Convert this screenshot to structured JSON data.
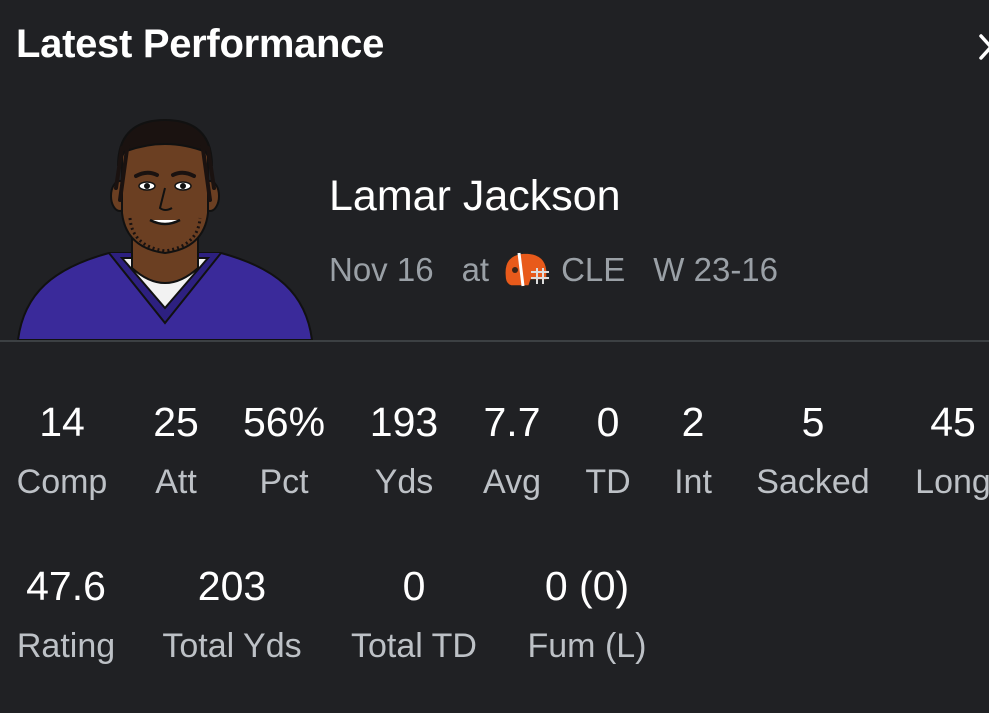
{
  "header": {
    "title": "Latest Performance"
  },
  "player": {
    "name": "Lamar Jackson",
    "date": "Nov 16",
    "location": "at",
    "opponent": "CLE",
    "result": "W 23-16",
    "jersey_color": "#3a2a9a",
    "helmet_color": "#e85a1b"
  },
  "stats_row1": [
    {
      "value": "14",
      "label": "Comp"
    },
    {
      "value": "25",
      "label": "Att"
    },
    {
      "value": "56%",
      "label": "Pct"
    },
    {
      "value": "193",
      "label": "Yds"
    },
    {
      "value": "7.7",
      "label": "Avg"
    },
    {
      "value": "0",
      "label": "TD"
    },
    {
      "value": "2",
      "label": "Int"
    },
    {
      "value": "5",
      "label": "Sacked"
    },
    {
      "value": "45",
      "label": "Long"
    }
  ],
  "stats_row2": [
    {
      "value": "47.6",
      "label": "Rating"
    },
    {
      "value": "203",
      "label": "Total Yds"
    },
    {
      "value": "0",
      "label": "Total TD"
    },
    {
      "value": "0 (0)",
      "label": "Fum (L)"
    }
  ]
}
